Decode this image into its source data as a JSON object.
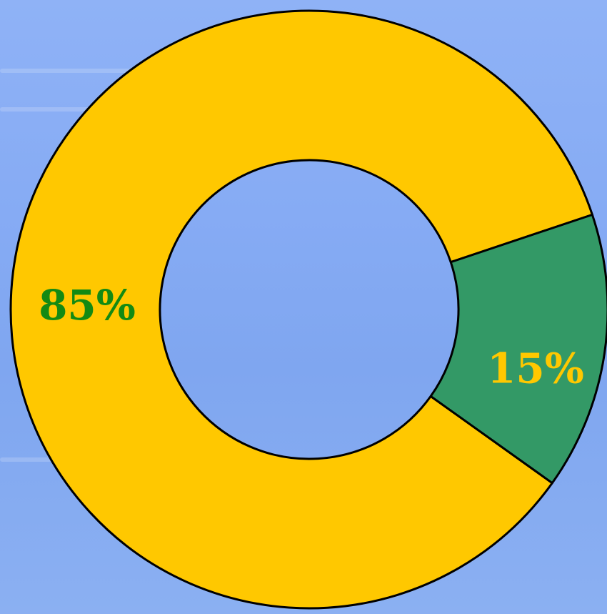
{
  "chart_data": {
    "type": "pie",
    "style": "donut",
    "slices": [
      {
        "label": "85%",
        "value": 85,
        "color": "#ffc800",
        "label_color": "#138a13"
      },
      {
        "label": "15%",
        "value": 15,
        "color": "#339966",
        "label_color": "#ffc800"
      }
    ],
    "outline_color": "#000000"
  }
}
